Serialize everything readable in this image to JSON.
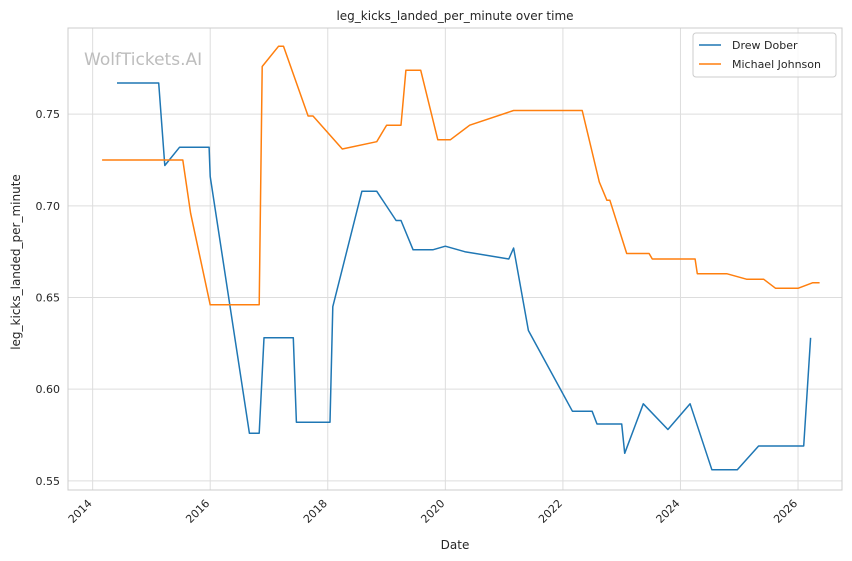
{
  "chart_data": {
    "type": "line",
    "title": "leg_kicks_landed_per_minute over time",
    "xlabel": "Date",
    "ylabel": "leg_kicks_landed_per_minute",
    "watermark": "WolfTickets.AI",
    "x_ticks": [
      "2014",
      "2016",
      "2018",
      "2020",
      "2022",
      "2024",
      "2026"
    ],
    "y_ticks": [
      "0.55",
      "0.60",
      "0.65",
      "0.70",
      "0.75"
    ],
    "xlim": [
      "2013-08-01",
      "2026-10-01"
    ],
    "ylim": [
      0.545,
      0.797
    ],
    "grid": true,
    "legend_position": "top-right",
    "series": [
      {
        "name": "Drew Dober",
        "color": "#1f77b4",
        "points": [
          [
            "2014-06-01",
            0.767
          ],
          [
            "2015-02-15",
            0.767
          ],
          [
            "2015-03-25",
            0.722
          ],
          [
            "2015-06-25",
            0.732
          ],
          [
            "2015-12-25",
            0.732
          ],
          [
            "2016-01-01",
            0.716
          ],
          [
            "2016-09-01",
            0.576
          ],
          [
            "2016-11-01",
            0.576
          ],
          [
            "2016-12-01",
            0.628
          ],
          [
            "2017-06-01",
            0.628
          ],
          [
            "2017-06-20",
            0.582
          ],
          [
            "2018-01-15",
            0.582
          ],
          [
            "2018-02-01",
            0.645
          ],
          [
            "2018-08-01",
            0.708
          ],
          [
            "2018-11-01",
            0.708
          ],
          [
            "2019-03-01",
            0.692
          ],
          [
            "2019-04-01",
            0.692
          ],
          [
            "2019-06-15",
            0.676
          ],
          [
            "2019-10-15",
            0.676
          ],
          [
            "2020-01-01",
            0.678
          ],
          [
            "2020-05-01",
            0.675
          ],
          [
            "2021-01-30",
            0.671
          ],
          [
            "2021-03-01",
            0.677
          ],
          [
            "2021-06-01",
            0.632
          ],
          [
            "2022-03-01",
            0.588
          ],
          [
            "2022-07-01",
            0.588
          ],
          [
            "2022-08-01",
            0.581
          ],
          [
            "2023-01-01",
            0.581
          ],
          [
            "2023-01-20",
            0.565
          ],
          [
            "2023-05-15",
            0.592
          ],
          [
            "2023-10-15",
            0.578
          ],
          [
            "2024-03-01",
            0.592
          ],
          [
            "2024-07-15",
            0.556
          ],
          [
            "2024-12-20",
            0.556
          ],
          [
            "2025-05-01",
            0.569
          ],
          [
            "2026-02-05",
            0.569
          ],
          [
            "2026-03-20",
            0.628
          ]
        ]
      },
      {
        "name": "Michael Johnson",
        "color": "#ff7f0e",
        "points": [
          [
            "2014-03-01",
            0.725
          ],
          [
            "2015-07-15",
            0.725
          ],
          [
            "2015-09-01",
            0.696
          ],
          [
            "2016-01-01",
            0.646
          ],
          [
            "2016-11-01",
            0.646
          ],
          [
            "2016-11-20",
            0.776
          ],
          [
            "2017-03-01",
            0.787
          ],
          [
            "2017-04-01",
            0.787
          ],
          [
            "2017-09-01",
            0.749
          ],
          [
            "2017-10-01",
            0.749
          ],
          [
            "2018-04-01",
            0.731
          ],
          [
            "2018-11-01",
            0.735
          ],
          [
            "2019-01-01",
            0.744
          ],
          [
            "2019-04-01",
            0.744
          ],
          [
            "2019-05-01",
            0.774
          ],
          [
            "2019-08-01",
            0.774
          ],
          [
            "2019-11-15",
            0.736
          ],
          [
            "2020-02-01",
            0.736
          ],
          [
            "2020-06-01",
            0.744
          ],
          [
            "2021-03-01",
            0.752
          ],
          [
            "2022-05-01",
            0.752
          ],
          [
            "2022-08-15",
            0.713
          ],
          [
            "2022-10-01",
            0.703
          ],
          [
            "2022-10-20",
            0.703
          ],
          [
            "2023-02-01",
            0.674
          ],
          [
            "2023-06-20",
            0.674
          ],
          [
            "2023-07-10",
            0.671
          ],
          [
            "2024-04-01",
            0.671
          ],
          [
            "2024-04-15",
            0.663
          ],
          [
            "2024-10-15",
            0.663
          ],
          [
            "2025-02-15",
            0.66
          ],
          [
            "2025-06-01",
            0.66
          ],
          [
            "2025-08-15",
            0.655
          ],
          [
            "2026-01-01",
            0.655
          ],
          [
            "2026-04-01",
            0.658
          ],
          [
            "2026-05-15",
            0.658
          ]
        ]
      }
    ]
  }
}
